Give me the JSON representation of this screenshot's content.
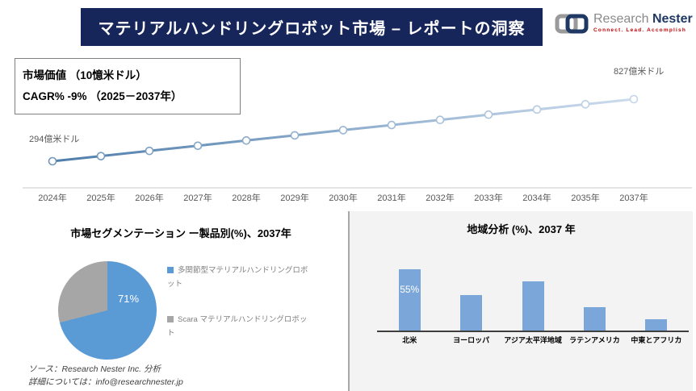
{
  "header": {
    "title": "マテリアルハンドリングロボット市場 – レポートの洞察"
  },
  "logo": {
    "brand_gray": "Research",
    "brand_navy": "Nester",
    "tagline": "Connect. Lead. Accomplish"
  },
  "info_box": {
    "line1": "市場価値 （10憶米ドル）",
    "line2": "CAGR% -9% （2025－2037年）"
  },
  "colors": {
    "header_bg": "#17265a",
    "line_start": "#4e7dab",
    "line_end": "#cddcee",
    "marker_stroke_start": "#6f96bb",
    "marker_stroke_end": "#c5d5e8",
    "axis_light": "#dcdcdc",
    "pie_blue": "#5b9bd5",
    "pie_gray": "#a6a6a6",
    "bar_blue": "#7aa6d9",
    "panel_bg": "#f3f3f3",
    "brand_red": "#c00000",
    "brand_navy": "#1f3864"
  },
  "chart_data": [
    {
      "type": "line",
      "title": "市場価値 （10憶米ドル）",
      "x_labels": [
        "2024年",
        "2025年",
        "2026年",
        "2027年",
        "2028年",
        "2029年",
        "2030年",
        "2031年",
        "2032年",
        "2033年",
        "2034年",
        "2035年",
        "2037年"
      ],
      "values": [
        294,
        338,
        383,
        427,
        472,
        516,
        561,
        605,
        649,
        694,
        738,
        783,
        827
      ],
      "annotations": [
        {
          "index": 0,
          "text": "294億米ドル"
        },
        {
          "index": 12,
          "text": "827億米ドル"
        }
      ],
      "grid": false,
      "legend": "none"
    },
    {
      "type": "pie",
      "title": "市場セグメンテーション ー製品別(%)、2037年",
      "slices": [
        {
          "label": "多関節型マテリアルハンドリングロボット",
          "value": 71,
          "data_label": "71%",
          "color": "#5b9bd5"
        },
        {
          "label": "Scara マテリアルハンドリングロボット",
          "value": 29,
          "data_label": "",
          "color": "#a6a6a6"
        }
      ],
      "legend_position": "right"
    },
    {
      "type": "bar",
      "title": "地域分析 (%)、2037 年",
      "categories": [
        "北米",
        "ヨーロッパ",
        "アジア太平洋地域",
        "ラテンアメリカ",
        "中東とアフリカ"
      ],
      "values": [
        55,
        32,
        44,
        21,
        10
      ],
      "data_labels": [
        "55%",
        "",
        "",
        "",
        ""
      ],
      "ylim": [
        0,
        60
      ],
      "grid": false
    }
  ],
  "footer": {
    "source": "ソース：Research Nester Inc. 分析",
    "contact": "詳細については：info@researchnester.jp"
  }
}
